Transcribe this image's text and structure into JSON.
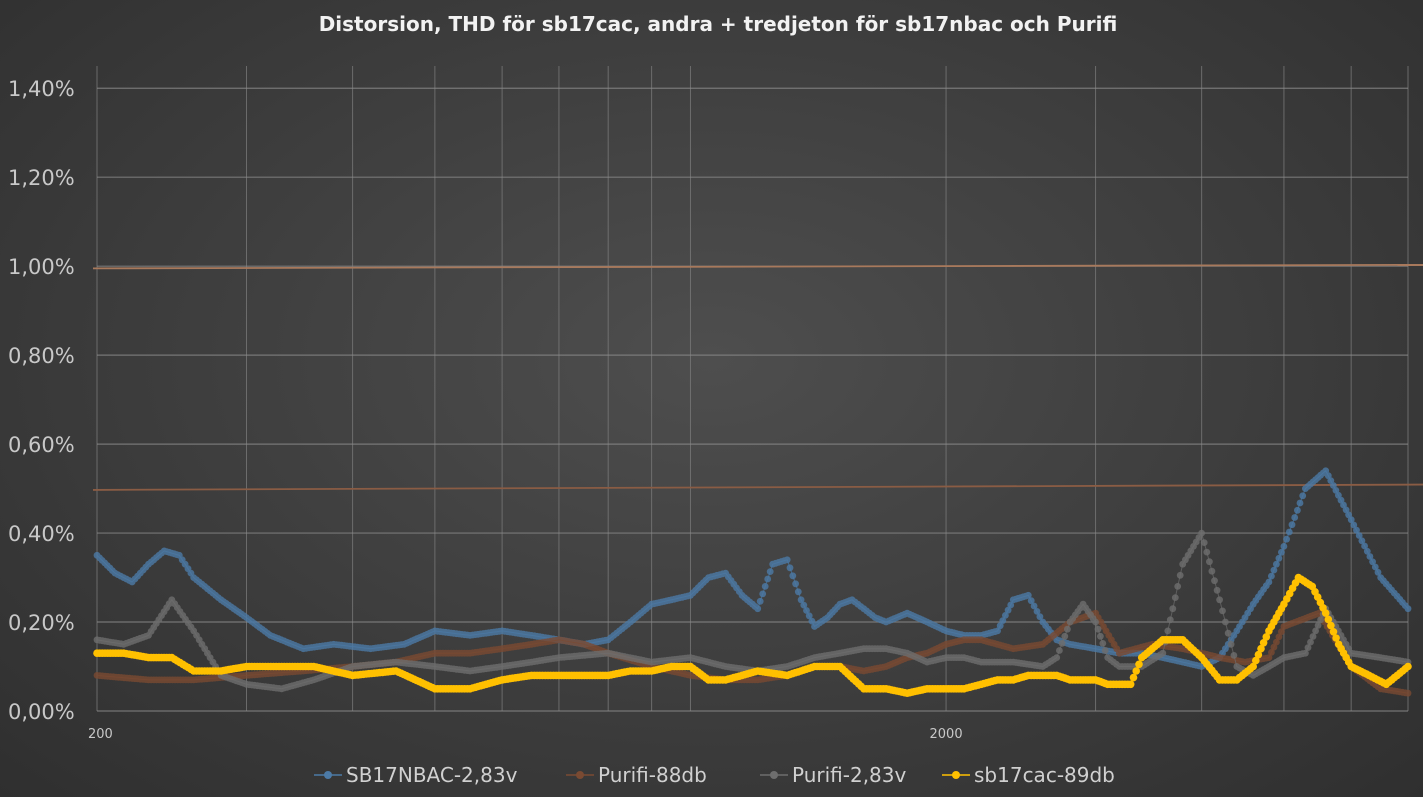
{
  "chart_data": {
    "type": "line",
    "title": "Distorsion, THD för sb17cac, andra + tredjeton för sb17nbac och Purifi",
    "xlabel": "",
    "ylabel": "",
    "x_scale": "log",
    "xlim": [
      200,
      7000
    ],
    "ylim": [
      0,
      0.0145
    ],
    "x_tick_labels": [
      "200",
      "2000"
    ],
    "x_tick_values": [
      200,
      2000
    ],
    "y_tick_values": [
      0,
      0.002,
      0.004,
      0.006,
      0.008,
      0.01,
      0.012,
      0.014
    ],
    "y_tick_labels": [
      "0,00%",
      "0,20%",
      "0,40%",
      "0,60%",
      "0,80%",
      "1,00%",
      "1,20%",
      "1,40%"
    ],
    "reference_lines": [
      {
        "y_start": 0.00995,
        "y_end": 0.01003,
        "color": "#a8795c"
      },
      {
        "y_start": 0.00497,
        "y_end": 0.00509,
        "color": "#8a5c44"
      }
    ],
    "legend_position": "bottom",
    "series": [
      {
        "name": "SB17NBAC-2,83v",
        "color": "#4c7aa6",
        "x": [
          200,
          210,
          220,
          230,
          240,
          250,
          260,
          280,
          300,
          320,
          350,
          380,
          420,
          460,
          500,
          550,
          600,
          650,
          700,
          750,
          800,
          850,
          900,
          950,
          1000,
          1050,
          1100,
          1150,
          1200,
          1250,
          1300,
          1350,
          1400,
          1450,
          1500,
          1550,
          1600,
          1650,
          1700,
          1800,
          1900,
          2000,
          2100,
          2200,
          2300,
          2400,
          2500,
          2600,
          2700,
          2800,
          3000,
          3200,
          3400,
          3600,
          3800,
          4000,
          4200,
          4400,
          4600,
          4800,
          5000,
          5300,
          5600,
          6000,
          6500,
          7000
        ],
        "y": [
          0.0035,
          0.0031,
          0.0029,
          0.0033,
          0.0036,
          0.0035,
          0.003,
          0.0025,
          0.0021,
          0.0017,
          0.0014,
          0.0015,
          0.0014,
          0.0015,
          0.0018,
          0.0017,
          0.0018,
          0.0017,
          0.0016,
          0.0015,
          0.0016,
          0.002,
          0.0024,
          0.0025,
          0.0026,
          0.003,
          0.0031,
          0.0026,
          0.0023,
          0.0033,
          0.0034,
          0.0025,
          0.0019,
          0.0021,
          0.0024,
          0.0025,
          0.0023,
          0.0021,
          0.002,
          0.0022,
          0.002,
          0.0018,
          0.0017,
          0.0017,
          0.0018,
          0.0025,
          0.0026,
          0.002,
          0.0016,
          0.0015,
          0.0014,
          0.0013,
          0.0013,
          0.0012,
          0.0011,
          0.001,
          0.0012,
          0.0018,
          0.0024,
          0.0029,
          0.0037,
          0.005,
          0.0054,
          0.0043,
          0.003,
          0.0023
        ]
      },
      {
        "name": "Purifi-88db",
        "color": "#7a4a32",
        "x": [
          200,
          230,
          260,
          300,
          350,
          400,
          450,
          500,
          550,
          600,
          650,
          700,
          750,
          800,
          900,
          1000,
          1100,
          1200,
          1300,
          1400,
          1500,
          1600,
          1700,
          1800,
          1900,
          2000,
          2100,
          2200,
          2400,
          2600,
          2800,
          3000,
          3200,
          3500,
          3800,
          4000,
          4200,
          4500,
          4800,
          5000,
          5500,
          6000,
          6500,
          7000
        ],
        "y": [
          0.0008,
          0.0007,
          0.0007,
          0.0008,
          0.0009,
          0.001,
          0.0011,
          0.0013,
          0.0013,
          0.0014,
          0.0015,
          0.0016,
          0.0015,
          0.0013,
          0.001,
          0.0008,
          0.0007,
          0.0007,
          0.0008,
          0.001,
          0.001,
          0.0009,
          0.001,
          0.0012,
          0.0013,
          0.0015,
          0.0016,
          0.0016,
          0.0014,
          0.0015,
          0.002,
          0.0022,
          0.0013,
          0.0015,
          0.0014,
          0.0013,
          0.0012,
          0.0011,
          0.0012,
          0.0019,
          0.0022,
          0.001,
          0.0005,
          0.0004
        ]
      },
      {
        "name": "Purifi-2,83v",
        "color": "#6e6e6e",
        "x": [
          200,
          215,
          230,
          245,
          260,
          280,
          300,
          330,
          360,
          400,
          450,
          500,
          550,
          600,
          650,
          700,
          800,
          900,
          1000,
          1100,
          1200,
          1300,
          1400,
          1500,
          1600,
          1700,
          1800,
          1900,
          2000,
          2100,
          2200,
          2400,
          2600,
          2700,
          2800,
          2900,
          3000,
          3100,
          3200,
          3400,
          3600,
          3800,
          4000,
          4200,
          4400,
          4600,
          4800,
          5000,
          5300,
          5600,
          6000,
          6500,
          7000
        ],
        "y": [
          0.0016,
          0.0015,
          0.0017,
          0.0025,
          0.0018,
          0.0008,
          0.0006,
          0.0005,
          0.0007,
          0.001,
          0.0011,
          0.001,
          0.0009,
          0.001,
          0.0011,
          0.0012,
          0.0013,
          0.0011,
          0.0012,
          0.001,
          0.0009,
          0.001,
          0.0012,
          0.0013,
          0.0014,
          0.0014,
          0.0013,
          0.0011,
          0.0012,
          0.0012,
          0.0011,
          0.0011,
          0.001,
          0.0012,
          0.002,
          0.0024,
          0.002,
          0.0012,
          0.001,
          0.001,
          0.0013,
          0.0033,
          0.004,
          0.0025,
          0.001,
          0.0008,
          0.001,
          0.0012,
          0.0013,
          0.0023,
          0.0013,
          0.0012,
          0.0011
        ]
      },
      {
        "name": "sb17cac-89db",
        "color": "#ffc000",
        "x": [
          200,
          215,
          230,
          245,
          260,
          280,
          300,
          330,
          360,
          400,
          450,
          500,
          550,
          600,
          650,
          700,
          750,
          800,
          850,
          900,
          950,
          1000,
          1050,
          1100,
          1150,
          1200,
          1300,
          1400,
          1500,
          1600,
          1700,
          1800,
          1900,
          2000,
          2100,
          2200,
          2300,
          2400,
          2500,
          2600,
          2700,
          2800,
          2900,
          3000,
          3100,
          3200,
          3300,
          3400,
          3600,
          3800,
          4000,
          4200,
          4400,
          4600,
          4800,
          5000,
          5200,
          5400,
          5600,
          5800,
          6000,
          6300,
          6600,
          7000
        ],
        "y": [
          0.0013,
          0.0013,
          0.0012,
          0.0012,
          0.0009,
          0.0009,
          0.001,
          0.001,
          0.001,
          0.0008,
          0.0009,
          0.0005,
          0.0005,
          0.0007,
          0.0008,
          0.0008,
          0.0008,
          0.0008,
          0.0009,
          0.0009,
          0.001,
          0.001,
          0.0007,
          0.0007,
          0.0008,
          0.0009,
          0.0008,
          0.001,
          0.001,
          0.0005,
          0.0005,
          0.0004,
          0.0005,
          0.0005,
          0.0005,
          0.0006,
          0.0007,
          0.0007,
          0.0008,
          0.0008,
          0.0008,
          0.0007,
          0.0007,
          0.0007,
          0.0006,
          0.0006,
          0.0006,
          0.0012,
          0.0016,
          0.0016,
          0.0012,
          0.0007,
          0.0007,
          0.001,
          0.0018,
          0.0024,
          0.003,
          0.0028,
          0.0022,
          0.0015,
          0.001,
          0.0008,
          0.0006,
          0.001
        ]
      }
    ]
  }
}
